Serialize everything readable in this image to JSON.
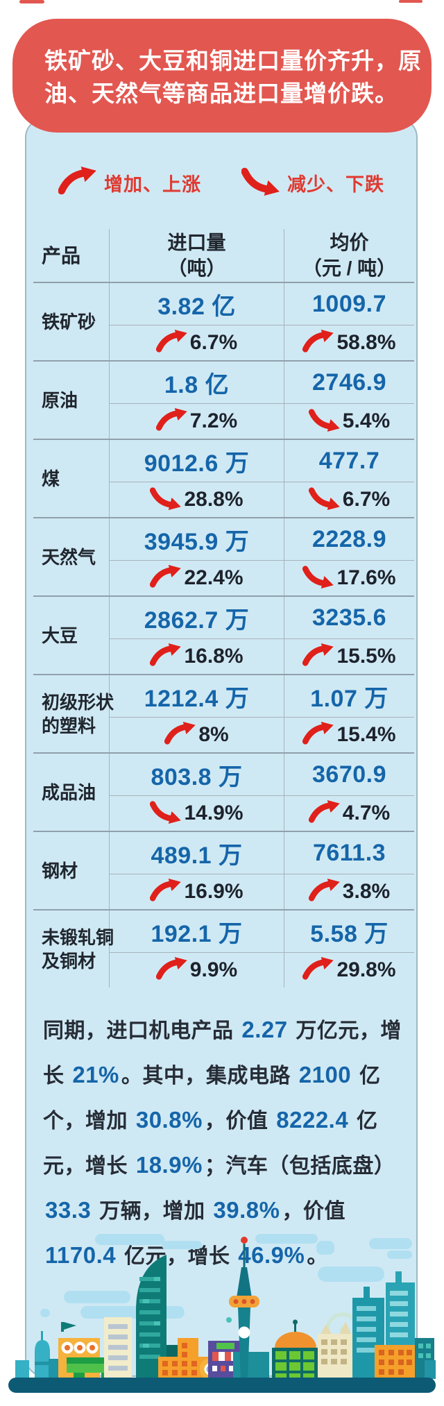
{
  "banner": {
    "line1": "铁矿砂、大豆和铜进口量价齐升，原",
    "line2": "油、天然气等商品进口量增价跌。"
  },
  "legend": {
    "up_label": "增加、上涨",
    "down_label": "减少、下跌",
    "up_icon": "swoosh-up-arrow",
    "down_icon": "swoosh-down-arrow"
  },
  "table": {
    "headers": {
      "product": "产品",
      "volume": "进口量\n（吨）",
      "price": "均价\n（元 / 吨）"
    },
    "rows": [
      {
        "product": "铁矿砂",
        "volume": "3.82 亿",
        "volume_change": "6.7%",
        "volume_dir": "up",
        "price": "1009.7",
        "price_change": "58.8%",
        "price_dir": "up"
      },
      {
        "product": "原油",
        "volume": "1.8 亿",
        "volume_change": "7.2%",
        "volume_dir": "up",
        "price": "2746.9",
        "price_change": "5.4%",
        "price_dir": "down"
      },
      {
        "product": "煤",
        "volume": "9012.6 万",
        "volume_change": "28.8%",
        "volume_dir": "down",
        "price": "477.7",
        "price_change": "6.7%",
        "price_dir": "down"
      },
      {
        "product": "天然气",
        "volume": "3945.9 万",
        "volume_change": "22.4%",
        "volume_dir": "up",
        "price": "2228.9",
        "price_change": "17.6%",
        "price_dir": "down"
      },
      {
        "product": "大豆",
        "volume": "2862.7 万",
        "volume_change": "16.8%",
        "volume_dir": "up",
        "price": "3235.6",
        "price_change": "15.5%",
        "price_dir": "up"
      },
      {
        "product": "初级形状\n的塑料",
        "volume": "1212.4 万",
        "volume_change": "8%",
        "volume_dir": "up",
        "price": "1.07 万",
        "price_change": "15.4%",
        "price_dir": "up"
      },
      {
        "product": "成品油",
        "volume": "803.8 万",
        "volume_change": "14.9%",
        "volume_dir": "down",
        "price": "3670.9",
        "price_change": "4.7%",
        "price_dir": "up"
      },
      {
        "product": "钢材",
        "volume": "489.1 万",
        "volume_change": "16.9%",
        "volume_dir": "up",
        "price": "7611.3",
        "price_change": "3.8%",
        "price_dir": "up"
      },
      {
        "product": "未锻轧铜\n及铜材",
        "volume": "192.1 万",
        "volume_change": "9.9%",
        "volume_dir": "up",
        "price": "5.58 万",
        "price_change": "29.8%",
        "price_dir": "up"
      }
    ]
  },
  "paragraph": {
    "segments": [
      {
        "t": "同期，进口机电产品 ",
        "n": false
      },
      {
        "t": "2.27",
        "n": true
      },
      {
        "t": " 万亿元，增长 ",
        "n": false
      },
      {
        "t": "21%",
        "n": true
      },
      {
        "t": "。其中，集成电路 ",
        "n": false
      },
      {
        "t": "2100",
        "n": true
      },
      {
        "t": " 亿个，增加 ",
        "n": false
      },
      {
        "t": "30.8%",
        "n": true
      },
      {
        "t": "，价值 ",
        "n": false
      },
      {
        "t": "8222.4",
        "n": true
      },
      {
        "t": " 亿元，增长 ",
        "n": false
      },
      {
        "t": "18.9%",
        "n": true
      },
      {
        "t": "；汽车（包括底盘）",
        "n": false
      },
      {
        "t": "33.3",
        "n": true
      },
      {
        "t": " 万辆，增加 ",
        "n": false
      },
      {
        "t": "39.8%",
        "n": true
      },
      {
        "t": "，价值 ",
        "n": false
      },
      {
        "t": "1170.4",
        "n": true
      },
      {
        "t": " 亿元，增长 ",
        "n": false
      },
      {
        "t": "46.9%",
        "n": true
      },
      {
        "t": "。",
        "n": false
      }
    ]
  },
  "colors": {
    "banner_red": "#e25750",
    "arrow_red": "#e0201a",
    "legend_red": "#e03a31",
    "value_blue": "#1565a9",
    "text_dark": "#20262e",
    "panel_bg": "#cfe9f4",
    "ground_teal": "#0d5a74"
  },
  "chart_data": {
    "type": "table",
    "title": "铁矿砂、大豆和铜进口量价齐升，原油、天然气等商品进口量增价跌。",
    "legend": {
      "up": "增加、上涨",
      "down": "减少、下跌"
    },
    "columns": [
      "产品",
      "进口量（吨）",
      "均价（元/吨）"
    ],
    "rows": [
      {
        "product": "铁矿砂",
        "import_volume": "3.82亿",
        "volume_change_pct": 6.7,
        "volume_direction": "up",
        "avg_price": "1009.7",
        "price_change_pct": 58.8,
        "price_direction": "up"
      },
      {
        "product": "原油",
        "import_volume": "1.8亿",
        "volume_change_pct": 7.2,
        "volume_direction": "up",
        "avg_price": "2746.9",
        "price_change_pct": 5.4,
        "price_direction": "down"
      },
      {
        "product": "煤",
        "import_volume": "9012.6万",
        "volume_change_pct": 28.8,
        "volume_direction": "down",
        "avg_price": "477.7",
        "price_change_pct": 6.7,
        "price_direction": "down"
      },
      {
        "product": "天然气",
        "import_volume": "3945.9万",
        "volume_change_pct": 22.4,
        "volume_direction": "up",
        "avg_price": "2228.9",
        "price_change_pct": 17.6,
        "price_direction": "down"
      },
      {
        "product": "大豆",
        "import_volume": "2862.7万",
        "volume_change_pct": 16.8,
        "volume_direction": "up",
        "avg_price": "3235.6",
        "price_change_pct": 15.5,
        "price_direction": "up"
      },
      {
        "product": "初级形状的塑料",
        "import_volume": "1212.4万",
        "volume_change_pct": 8,
        "volume_direction": "up",
        "avg_price": "1.07万",
        "price_change_pct": 15.4,
        "price_direction": "up"
      },
      {
        "product": "成品油",
        "import_volume": "803.8万",
        "volume_change_pct": 14.9,
        "volume_direction": "down",
        "avg_price": "3670.9",
        "price_change_pct": 4.7,
        "price_direction": "up"
      },
      {
        "product": "钢材",
        "import_volume": "489.1万",
        "volume_change_pct": 16.9,
        "volume_direction": "up",
        "avg_price": "7611.3",
        "price_change_pct": 3.8,
        "price_direction": "up"
      },
      {
        "product": "未锻轧铜及铜材",
        "import_volume": "192.1万",
        "volume_change_pct": 9.9,
        "volume_direction": "up",
        "avg_price": "5.58万",
        "price_change_pct": 29.8,
        "price_direction": "up"
      }
    ],
    "footnote": "同期，进口机电产品2.27万亿元，增长21%。其中，集成电路2100亿个，增加30.8%，价值8222.4亿元，增长18.9%；汽车（包括底盘）33.3万辆，增加39.8%，价值1170.4亿元，增长46.9%。"
  }
}
